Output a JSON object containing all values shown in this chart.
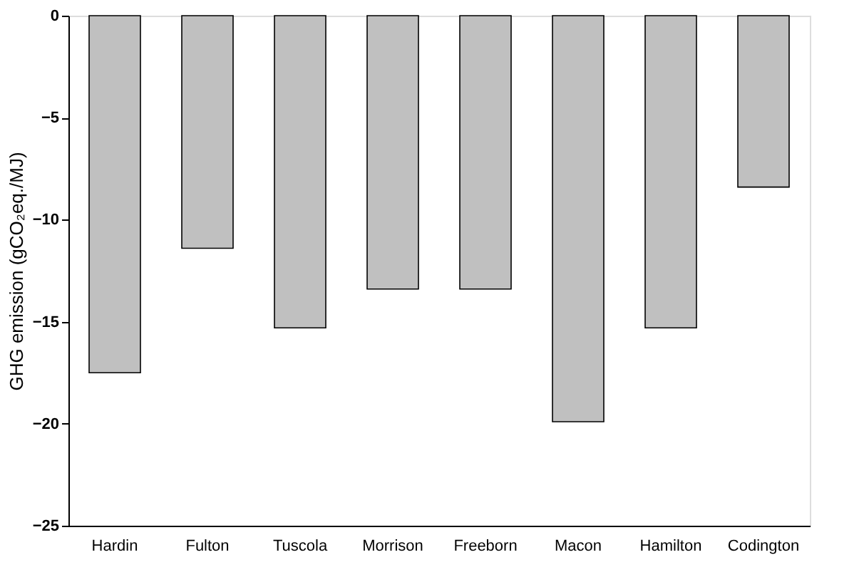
{
  "chart_data": {
    "type": "bar",
    "ylabel": "GHG emission (gCO₂eq./MJ)",
    "categories": [
      "Hardin",
      "Fulton",
      "Tuscola",
      "Morrison",
      "Freeborn",
      "Macon",
      "Hamilton",
      "Codington"
    ],
    "values": [
      -17.5,
      -11.4,
      -15.3,
      -13.4,
      -13.4,
      -19.9,
      -15.3,
      -8.4
    ],
    "color": "#c0c0c0",
    "ylim": [
      -25,
      0
    ],
    "yticks": [
      -25,
      -20,
      -15,
      -10,
      -5,
      0
    ],
    "grid": false
  }
}
